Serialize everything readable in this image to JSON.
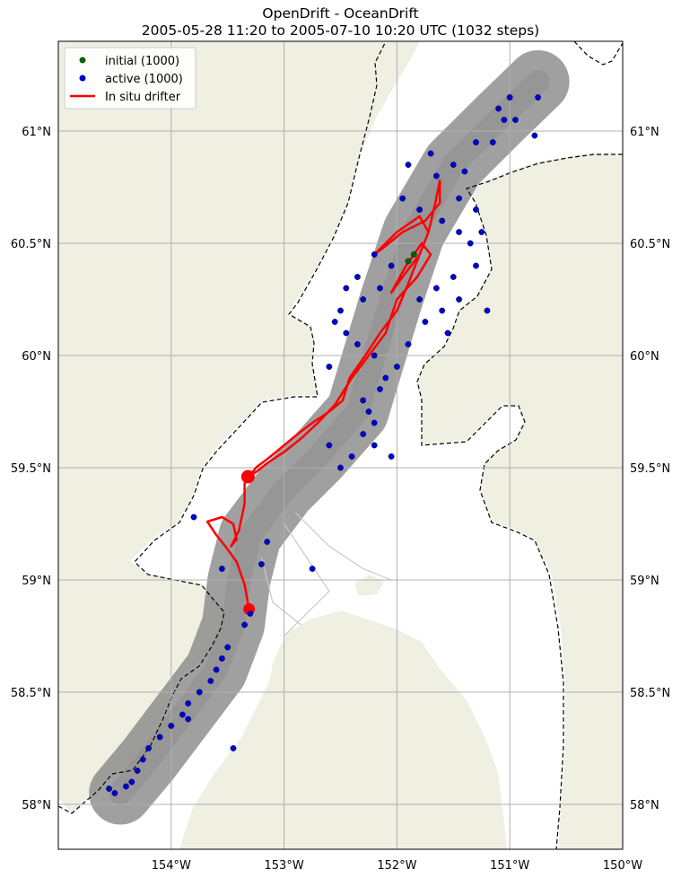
{
  "title": {
    "line1": "OpenDrift - OceanDrift",
    "line2": "2005-05-28 11:20 to 2005-07-10 10:20 UTC (1032 steps)"
  },
  "legend": {
    "position": "upper-left",
    "items": [
      {
        "label": "initial (1000)",
        "color": "#006400",
        "kind": "marker"
      },
      {
        "label": "active (1000)",
        "color": "#0000cc",
        "kind": "marker"
      },
      {
        "label": "In situ drifter",
        "color": "#ff0000",
        "kind": "line"
      }
    ]
  },
  "map": {
    "extent": {
      "lon_min": -155,
      "lon_max": -150,
      "lat_min": 57.8,
      "lat_max": 61.4
    },
    "land_color": "#efefe2",
    "water_color": "#ffffff",
    "trajectory_color": "#808080",
    "boundary_style": "dashed",
    "grid": true
  },
  "axes": {
    "lon_ticks": [
      {
        "value": -154,
        "label": "154°W"
      },
      {
        "value": -153,
        "label": "153°W"
      },
      {
        "value": -152,
        "label": "152°W"
      },
      {
        "value": -151,
        "label": "151°W"
      },
      {
        "value": -150,
        "label": "150°W"
      }
    ],
    "lat_ticks": [
      {
        "value": 58.0,
        "label": "58°N"
      },
      {
        "value": 58.5,
        "label": "58.5°N"
      },
      {
        "value": 59.0,
        "label": "59°N"
      },
      {
        "value": 59.5,
        "label": "59.5°N"
      },
      {
        "value": 60.0,
        "label": "60°N"
      },
      {
        "value": 60.5,
        "label": "60.5°N"
      },
      {
        "value": 61.0,
        "label": "61°N"
      }
    ]
  },
  "drifter": {
    "name": "In situ drifter",
    "start": {
      "lon": -153.31,
      "lat": 58.87
    },
    "end": {
      "lon": -153.32,
      "lat": 59.46
    },
    "track": [
      [
        -153.31,
        58.87
      ],
      [
        -153.35,
        58.98
      ],
      [
        -153.42,
        59.08
      ],
      [
        -153.52,
        59.15
      ],
      [
        -153.6,
        59.2
      ],
      [
        -153.68,
        59.26
      ],
      [
        -153.55,
        59.28
      ],
      [
        -153.45,
        59.25
      ],
      [
        -153.42,
        59.18
      ],
      [
        -153.47,
        59.15
      ],
      [
        -153.4,
        59.22
      ],
      [
        -153.35,
        59.34
      ],
      [
        -153.35,
        59.43
      ],
      [
        -153.25,
        59.5
      ],
      [
        -153.12,
        59.55
      ],
      [
        -153.0,
        59.6
      ],
      [
        -152.88,
        59.65
      ],
      [
        -152.75,
        59.7
      ],
      [
        -152.6,
        59.75
      ],
      [
        -152.48,
        59.8
      ],
      [
        -152.42,
        59.9
      ],
      [
        -152.28,
        60.0
      ],
      [
        -152.15,
        60.1
      ],
      [
        -152.0,
        60.2
      ],
      [
        -151.9,
        60.32
      ],
      [
        -151.8,
        60.45
      ],
      [
        -151.72,
        60.55
      ],
      [
        -151.66,
        60.68
      ],
      [
        -151.62,
        60.78
      ],
      [
        -151.62,
        60.68
      ],
      [
        -151.75,
        60.6
      ],
      [
        -151.95,
        60.55
      ],
      [
        -152.12,
        60.48
      ],
      [
        -152.2,
        60.45
      ],
      [
        -152.0,
        60.55
      ],
      [
        -151.8,
        60.62
      ],
      [
        -151.72,
        60.55
      ],
      [
        -151.8,
        60.45
      ],
      [
        -151.95,
        60.35
      ],
      [
        -152.05,
        60.28
      ],
      [
        -151.92,
        60.4
      ],
      [
        -151.78,
        60.5
      ],
      [
        -151.7,
        60.45
      ],
      [
        -151.82,
        60.35
      ],
      [
        -152.0,
        60.25
      ],
      [
        -152.1,
        60.1
      ],
      [
        -152.25,
        60.0
      ],
      [
        -152.4,
        59.9
      ],
      [
        -152.55,
        59.78
      ],
      [
        -152.7,
        59.7
      ],
      [
        -152.85,
        59.63
      ],
      [
        -153.0,
        59.57
      ],
      [
        -153.15,
        59.52
      ],
      [
        -153.25,
        59.48
      ],
      [
        -153.32,
        59.46
      ]
    ]
  },
  "chart_data": {
    "type": "scatter",
    "title": "OpenDrift - OceanDrift",
    "subtitle": "2005-05-28 11:20 to 2005-07-10 10:20 UTC (1032 steps)",
    "xlim": [
      -155,
      -150
    ],
    "ylim": [
      57.8,
      61.4
    ],
    "series": [
      {
        "name": "initial (1000)",
        "color": "#006400",
        "points": [
          [
            -151.9,
            60.42
          ],
          [
            -151.85,
            60.45
          ]
        ]
      },
      {
        "name": "active (1000)",
        "color": "#0000cc",
        "points": [
          [
            -151.05,
            61.05
          ],
          [
            -151.1,
            61.1
          ],
          [
            -151.0,
            61.15
          ],
          [
            -150.95,
            61.05
          ],
          [
            -150.75,
            61.15
          ],
          [
            -150.78,
            60.98
          ],
          [
            -151.3,
            60.95
          ],
          [
            -151.5,
            60.85
          ],
          [
            -151.7,
            60.9
          ],
          [
            -151.9,
            60.85
          ],
          [
            -151.65,
            60.8
          ],
          [
            -151.4,
            60.82
          ],
          [
            -151.15,
            60.95
          ],
          [
            -151.95,
            60.7
          ],
          [
            -151.8,
            60.65
          ],
          [
            -151.6,
            60.6
          ],
          [
            -151.45,
            60.55
          ],
          [
            -151.35,
            60.5
          ],
          [
            -151.3,
            60.4
          ],
          [
            -151.5,
            60.35
          ],
          [
            -151.65,
            60.3
          ],
          [
            -151.8,
            60.25
          ],
          [
            -151.6,
            60.2
          ],
          [
            -151.55,
            60.1
          ],
          [
            -151.75,
            60.15
          ],
          [
            -151.9,
            60.05
          ],
          [
            -152.0,
            59.95
          ],
          [
            -152.1,
            59.9
          ],
          [
            -152.2,
            60.0
          ],
          [
            -152.35,
            60.05
          ],
          [
            -152.45,
            60.1
          ],
          [
            -152.5,
            60.2
          ],
          [
            -152.3,
            60.25
          ],
          [
            -152.15,
            60.3
          ],
          [
            -152.05,
            60.4
          ],
          [
            -152.2,
            60.45
          ],
          [
            -152.35,
            60.35
          ],
          [
            -152.45,
            60.3
          ],
          [
            -152.55,
            60.15
          ],
          [
            -152.6,
            59.95
          ],
          [
            -152.3,
            59.8
          ],
          [
            -152.25,
            59.75
          ],
          [
            -152.2,
            59.7
          ],
          [
            -152.3,
            59.65
          ],
          [
            -152.2,
            59.6
          ],
          [
            -152.4,
            59.55
          ],
          [
            -152.5,
            59.5
          ],
          [
            -152.6,
            59.6
          ],
          [
            -152.05,
            59.55
          ],
          [
            -152.15,
            59.85
          ],
          [
            -153.8,
            59.28
          ],
          [
            -153.55,
            59.05
          ],
          [
            -153.2,
            59.07
          ],
          [
            -153.15,
            59.17
          ],
          [
            -152.75,
            59.05
          ],
          [
            -153.3,
            58.85
          ],
          [
            -153.35,
            58.8
          ],
          [
            -153.5,
            58.7
          ],
          [
            -153.55,
            58.65
          ],
          [
            -153.6,
            58.6
          ],
          [
            -153.65,
            58.55
          ],
          [
            -153.75,
            58.5
          ],
          [
            -153.85,
            58.45
          ],
          [
            -153.9,
            58.4
          ],
          [
            -154.0,
            58.35
          ],
          [
            -154.1,
            58.3
          ],
          [
            -154.2,
            58.25
          ],
          [
            -154.25,
            58.2
          ],
          [
            -154.3,
            58.15
          ],
          [
            -154.35,
            58.1
          ],
          [
            -154.4,
            58.08
          ],
          [
            -154.5,
            58.05
          ],
          [
            -154.55,
            58.07
          ],
          [
            -153.45,
            58.25
          ],
          [
            -153.85,
            58.38
          ],
          [
            -151.2,
            60.2
          ],
          [
            -151.45,
            60.25
          ],
          [
            -151.3,
            60.65
          ],
          [
            -151.25,
            60.55
          ],
          [
            -151.45,
            60.7
          ]
        ]
      }
    ]
  }
}
